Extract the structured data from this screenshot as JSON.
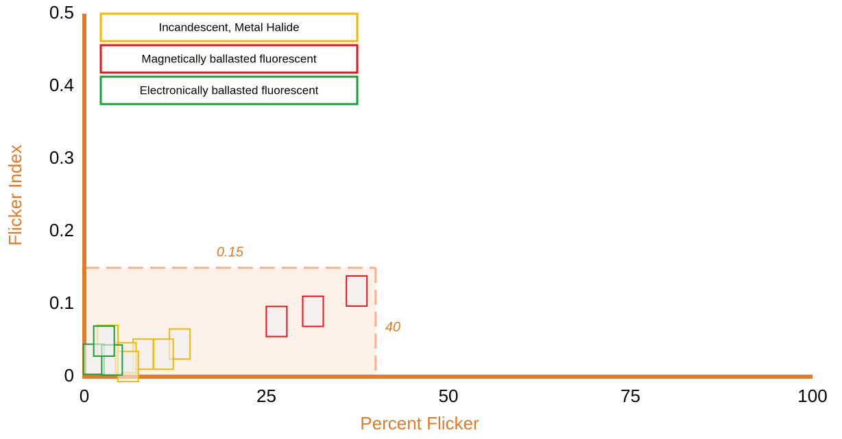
{
  "chart_data": {
    "type": "scatter",
    "xlabel": "Percent Flicker",
    "ylabel": "Flicker Index",
    "xlim": [
      0,
      100
    ],
    "ylim": [
      0,
      0.5
    ],
    "xticks": [
      0,
      25,
      50,
      75,
      100
    ],
    "yticks": [
      0,
      0.1,
      0.2,
      0.3,
      0.4,
      0.5
    ],
    "axis_color": "#e07b29",
    "region": {
      "x": 40,
      "y": 0.15
    },
    "series": [
      {
        "name": "Incandescent, Metal Halide",
        "color": "#f5b800",
        "x": [
          13.1,
          10.8,
          8.1,
          5.7,
          3.2,
          6.0
        ],
        "y": [
          0.045,
          0.031,
          0.031,
          0.026,
          0.05,
          0.014
        ]
      },
      {
        "name": "Magnetically ballasted fluorescent",
        "color": "#e8141c",
        "x": [
          26.4,
          31.4,
          37.4
        ],
        "y": [
          0.076,
          0.09,
          0.118
        ]
      },
      {
        "name": "Electronically ballasted fluorescent",
        "color": "#1a9e3a",
        "x": [
          1.3,
          3.8,
          2.7
        ],
        "y": [
          0.024,
          0.023,
          0.049
        ]
      }
    ]
  }
}
